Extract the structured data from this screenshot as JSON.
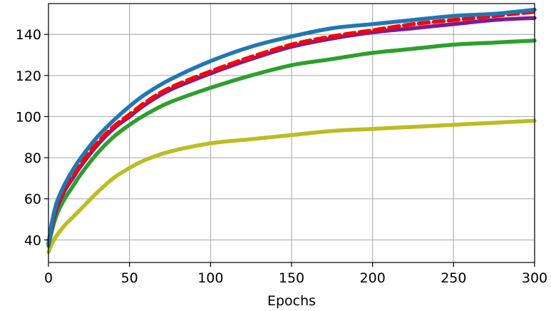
{
  "chart_data": {
    "type": "line",
    "title": "",
    "xlabel": "Epochs",
    "ylabel": "",
    "xlim": [
      0,
      300
    ],
    "ylim": [
      29,
      155
    ],
    "xticks": [
      0,
      50,
      100,
      150,
      200,
      250,
      300
    ],
    "yticks": [
      40,
      60,
      80,
      100,
      120,
      140
    ],
    "grid": true,
    "x": [
      0,
      2,
      5,
      10,
      15,
      20,
      30,
      40,
      50,
      60,
      75,
      100,
      125,
      150,
      175,
      200,
      225,
      250,
      275,
      300
    ],
    "series": [
      {
        "color": "#1f77b4",
        "style": "solid",
        "values": [
          38,
          48,
          58,
          67,
          74,
          80,
          90,
          98,
          105,
          111,
          118,
          127,
          134,
          139,
          143,
          145,
          147,
          149,
          150,
          152
        ]
      },
      {
        "color": "#ff0000",
        "style": "dashed",
        "values": [
          38,
          47,
          56,
          65,
          71,
          77,
          87,
          95,
          101,
          107,
          114,
          122,
          129,
          135,
          139,
          142,
          145,
          147,
          149,
          151
        ]
      },
      {
        "color": "#7f1b8f",
        "style": "solid",
        "values": [
          38,
          46,
          55,
          64,
          70,
          76,
          86,
          94,
          100,
          106,
          113,
          121,
          128,
          134,
          138,
          141,
          143,
          145,
          147,
          148
        ]
      },
      {
        "color": "#2ca02c",
        "style": "solid",
        "values": [
          37,
          44,
          52,
          60,
          66,
          72,
          82,
          90,
          96,
          101,
          107,
          114,
          120,
          125,
          128,
          131,
          133,
          135,
          136,
          137
        ]
      },
      {
        "color": "#bcbd22",
        "style": "solid",
        "values": [
          34,
          38,
          42,
          47,
          51,
          55,
          63,
          70,
          75,
          79,
          83,
          87,
          89,
          91,
          93,
          94,
          95,
          96,
          97,
          98
        ]
      }
    ]
  }
}
